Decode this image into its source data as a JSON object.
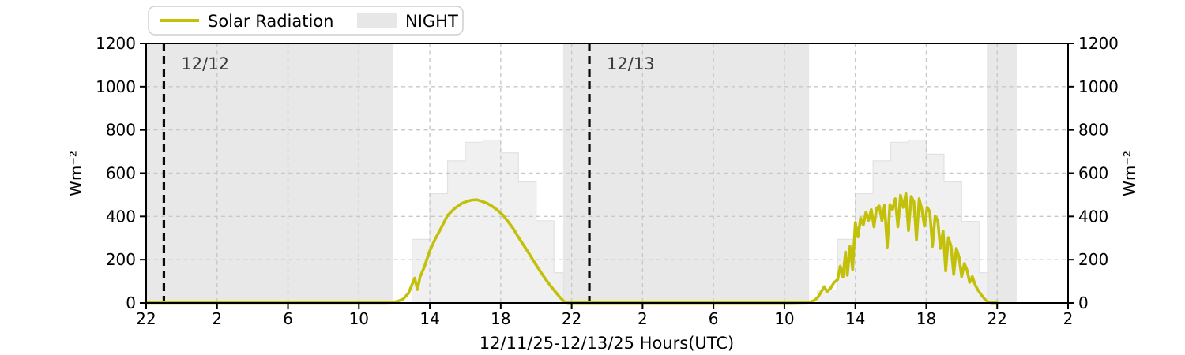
{
  "chart_data": {
    "type": "line",
    "title": "",
    "xlabel": "12/11/25-12/13/25  Hours(UTC)",
    "ylabel_left": "Wm⁻²",
    "ylabel_right": "Wm⁻²",
    "ylim": [
      0,
      1200
    ],
    "yticks": [
      0,
      200,
      400,
      600,
      800,
      1000,
      1200
    ],
    "x_span_hours": 52,
    "x_start_label_hour_utc": 22,
    "xtick_t": [
      0,
      4,
      8,
      12,
      16,
      20,
      24,
      28,
      32,
      36,
      40,
      44,
      48,
      52
    ],
    "xtick_labels": [
      "22",
      "2",
      "6",
      "10",
      "14",
      "18",
      "22",
      "2",
      "6",
      "10",
      "14",
      "18",
      "22",
      "2"
    ],
    "grid": true,
    "legend": {
      "position": "upper-left",
      "entries": [
        {
          "label": "Solar Radiation",
          "type": "line",
          "color": "#c3c00a"
        },
        {
          "label": "NIGHT",
          "type": "patch",
          "color": "#e7e7e7"
        }
      ]
    },
    "day_boundaries": [
      {
        "label": "12/12",
        "t": 1.0
      },
      {
        "label": "12/13",
        "t": 25.0
      }
    ],
    "night_regions_t": [
      [
        0,
        13.9
      ],
      [
        23.52,
        37.39
      ],
      [
        47.46,
        49.1
      ]
    ],
    "clear_sky_steps": [
      {
        "name": "day1",
        "edges_t": [
          15,
          16,
          17,
          18,
          19,
          20,
          21,
          22,
          23,
          23.55
        ],
        "values": [
          294,
          505,
          657,
          743,
          753,
          694,
          560,
          380,
          140
        ]
      },
      {
        "name": "day2",
        "edges_t": [
          37.88,
          39,
          40,
          41,
          42,
          43,
          44,
          45,
          46,
          47,
          47.5
        ],
        "values": [
          60,
          294,
          505,
          657,
          743,
          753,
          688,
          560,
          377,
          140
        ]
      }
    ],
    "series": [
      {
        "name": "Solar Radiation",
        "units": "Wm⁻²",
        "points_t_v": [
          [
            0,
            2
          ],
          [
            3,
            2
          ],
          [
            6,
            2
          ],
          [
            9,
            2
          ],
          [
            12,
            2
          ],
          [
            13.5,
            2
          ],
          [
            13.9,
            3
          ],
          [
            14.2,
            8
          ],
          [
            14.5,
            18
          ],
          [
            14.8,
            45
          ],
          [
            15.0,
            85
          ],
          [
            15.15,
            115
          ],
          [
            15.3,
            62
          ],
          [
            15.45,
            120
          ],
          [
            15.7,
            168
          ],
          [
            16.0,
            242
          ],
          [
            16.3,
            295
          ],
          [
            16.6,
            340
          ],
          [
            17.0,
            405
          ],
          [
            17.4,
            437
          ],
          [
            17.8,
            460
          ],
          [
            18.1,
            470
          ],
          [
            18.4,
            476
          ],
          [
            18.65,
            477
          ],
          [
            18.9,
            471
          ],
          [
            19.2,
            462
          ],
          [
            19.5,
            448
          ],
          [
            19.8,
            430
          ],
          [
            20.1,
            408
          ],
          [
            20.4,
            378
          ],
          [
            20.7,
            344
          ],
          [
            21.0,
            304
          ],
          [
            21.3,
            266
          ],
          [
            21.6,
            228
          ],
          [
            21.9,
            188
          ],
          [
            22.2,
            150
          ],
          [
            22.5,
            113
          ],
          [
            22.8,
            80
          ],
          [
            23.1,
            50
          ],
          [
            23.35,
            25
          ],
          [
            23.6,
            5
          ],
          [
            23.8,
            1
          ],
          [
            25,
            1
          ],
          [
            28,
            1
          ],
          [
            31,
            1
          ],
          [
            34,
            1
          ],
          [
            36.5,
            1
          ],
          [
            37.4,
            3
          ],
          [
            37.7,
            12
          ],
          [
            37.9,
            28
          ],
          [
            38.1,
            55
          ],
          [
            38.25,
            75
          ],
          [
            38.4,
            52
          ],
          [
            38.6,
            68
          ],
          [
            38.8,
            95
          ],
          [
            39.0,
            108
          ],
          [
            39.15,
            170
          ],
          [
            39.3,
            120
          ],
          [
            39.45,
            235
          ],
          [
            39.55,
            128
          ],
          [
            39.7,
            262
          ],
          [
            39.85,
            155
          ],
          [
            40.0,
            372
          ],
          [
            40.15,
            305
          ],
          [
            40.3,
            392
          ],
          [
            40.45,
            360
          ],
          [
            40.6,
            420
          ],
          [
            40.75,
            382
          ],
          [
            40.9,
            432
          ],
          [
            41.05,
            352
          ],
          [
            41.2,
            438
          ],
          [
            41.35,
            448
          ],
          [
            41.5,
            380
          ],
          [
            41.65,
            452
          ],
          [
            41.8,
            258
          ],
          [
            41.95,
            455
          ],
          [
            42.1,
            432
          ],
          [
            42.25,
            482
          ],
          [
            42.4,
            352
          ],
          [
            42.55,
            498
          ],
          [
            42.7,
            442
          ],
          [
            42.85,
            505
          ],
          [
            43.0,
            335
          ],
          [
            43.15,
            492
          ],
          [
            43.3,
            468
          ],
          [
            43.45,
            292
          ],
          [
            43.6,
            482
          ],
          [
            43.75,
            432
          ],
          [
            43.9,
            355
          ],
          [
            44.05,
            442
          ],
          [
            44.2,
            422
          ],
          [
            44.35,
            262
          ],
          [
            44.5,
            402
          ],
          [
            44.65,
            382
          ],
          [
            44.8,
            252
          ],
          [
            44.95,
            332
          ],
          [
            45.1,
            148
          ],
          [
            45.25,
            302
          ],
          [
            45.4,
            262
          ],
          [
            45.55,
            132
          ],
          [
            45.7,
            252
          ],
          [
            45.85,
            212
          ],
          [
            46.0,
            122
          ],
          [
            46.15,
            182
          ],
          [
            46.3,
            152
          ],
          [
            46.45,
            95
          ],
          [
            46.6,
            122
          ],
          [
            46.75,
            85
          ],
          [
            46.9,
            62
          ],
          [
            47.1,
            38
          ],
          [
            47.3,
            18
          ],
          [
            47.5,
            4
          ],
          [
            47.7,
            1
          ],
          [
            48,
            1
          ]
        ]
      }
    ],
    "colors": {
      "solar_line": "#c3c00a",
      "night_fill": "#e8e8e8",
      "clear_sky_fill": "#f0f0f0",
      "clear_sky_edge": "#e2e2e2",
      "grid": "#c8c8c8",
      "day_boundary_line": "#0a0a0a",
      "annotation_text": "#3a3a3a",
      "axis_text": "#000000",
      "legend_border": "#cfcfcf"
    }
  }
}
